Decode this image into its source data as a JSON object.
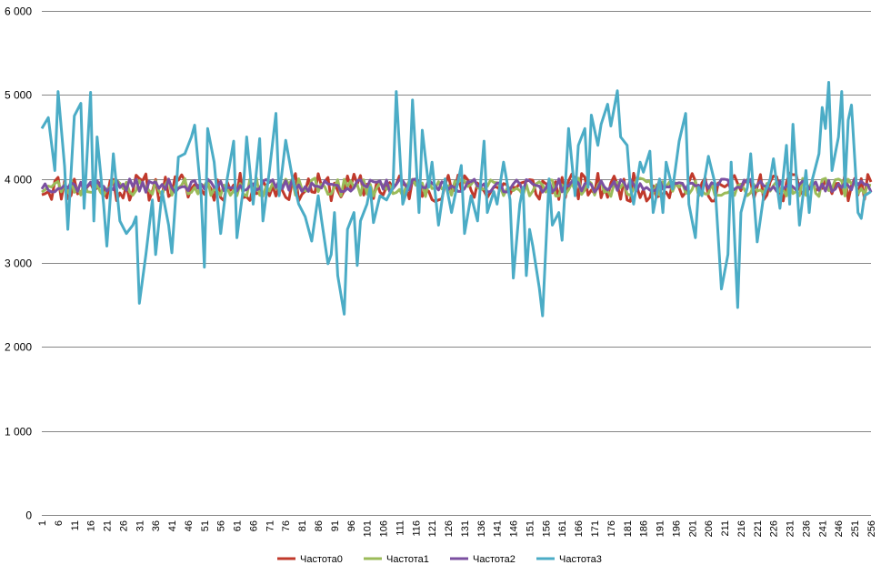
{
  "chart_data": {
    "type": "line",
    "title": "",
    "xlabel": "",
    "ylabel": "",
    "x_range": [
      1,
      256
    ],
    "ylim": [
      0,
      6000
    ],
    "yticks": [
      0,
      1000,
      2000,
      3000,
      4000,
      5000,
      6000
    ],
    "ytick_labels": [
      "0",
      "1 000",
      "2 000",
      "3 000",
      "4 000",
      "5 000",
      "6 000"
    ],
    "xtick_labels": [
      "1",
      "6",
      "11",
      "16",
      "21",
      "26",
      "31",
      "36",
      "41",
      "46",
      "51",
      "56",
      "61",
      "66",
      "71",
      "76",
      "81",
      "86",
      "91",
      "96",
      "101",
      "106",
      "111",
      "116",
      "121",
      "126",
      "131",
      "136",
      "141",
      "146",
      "151",
      "156",
      "161",
      "166",
      "171",
      "176",
      "181",
      "186",
      "191",
      "196",
      "201",
      "206",
      "211",
      "216",
      "221",
      "226",
      "231",
      "236",
      "241",
      "246",
      "251",
      "256"
    ],
    "grid": "horizontal",
    "legend_position": "bottom",
    "series": [
      {
        "name": "Частота0",
        "color": "#C0392B",
        "center": 3900,
        "amp": 170,
        "seed": 11
      },
      {
        "name": "Частота1",
        "color": "#9BBB59",
        "center": 3900,
        "amp": 110,
        "seed": 23
      },
      {
        "name": "Частота2",
        "color": "#7B4FA0",
        "center": 3920,
        "amp": 80,
        "seed": 37
      },
      {
        "name": "Частота3",
        "color": "#4BACC6",
        "anchors": [
          [
            1,
            4600
          ],
          [
            3,
            4730
          ],
          [
            5,
            4100
          ],
          [
            6,
            5040
          ],
          [
            8,
            4150
          ],
          [
            9,
            3400
          ],
          [
            11,
            4750
          ],
          [
            13,
            4900
          ],
          [
            14,
            3650
          ],
          [
            16,
            5030
          ],
          [
            17,
            3500
          ],
          [
            18,
            4500
          ],
          [
            20,
            3700
          ],
          [
            21,
            3200
          ],
          [
            23,
            4300
          ],
          [
            25,
            3500
          ],
          [
            27,
            3350
          ],
          [
            29,
            3450
          ],
          [
            30,
            3550
          ],
          [
            31,
            2520
          ],
          [
            33,
            3100
          ],
          [
            35,
            3750
          ],
          [
            36,
            3100
          ],
          [
            38,
            3850
          ],
          [
            40,
            3450
          ],
          [
            41,
            3120
          ],
          [
            43,
            4260
          ],
          [
            45,
            4300
          ],
          [
            47,
            4500
          ],
          [
            48,
            4640
          ],
          [
            50,
            3800
          ],
          [
            51,
            2950
          ],
          [
            52,
            4600
          ],
          [
            54,
            4200
          ],
          [
            56,
            3350
          ],
          [
            58,
            4000
          ],
          [
            60,
            4450
          ],
          [
            61,
            3300
          ],
          [
            63,
            3900
          ],
          [
            64,
            4500
          ],
          [
            66,
            3700
          ],
          [
            68,
            4480
          ],
          [
            69,
            3500
          ],
          [
            71,
            4100
          ],
          [
            73,
            4780
          ],
          [
            74,
            3800
          ],
          [
            76,
            4460
          ],
          [
            78,
            4030
          ],
          [
            80,
            3700
          ],
          [
            82,
            3550
          ],
          [
            84,
            3260
          ],
          [
            86,
            3800
          ],
          [
            87,
            3520
          ],
          [
            89,
            2990
          ],
          [
            90,
            3100
          ],
          [
            91,
            3600
          ],
          [
            92,
            2850
          ],
          [
            94,
            2390
          ],
          [
            95,
            3400
          ],
          [
            97,
            3600
          ],
          [
            98,
            2970
          ],
          [
            99,
            3500
          ],
          [
            101,
            3700
          ],
          [
            102,
            3900
          ],
          [
            103,
            3480
          ],
          [
            105,
            3800
          ],
          [
            107,
            3750
          ],
          [
            109,
            3900
          ],
          [
            110,
            5040
          ],
          [
            112,
            3700
          ],
          [
            114,
            3950
          ],
          [
            115,
            4940
          ],
          [
            117,
            3600
          ],
          [
            118,
            4580
          ],
          [
            120,
            3900
          ],
          [
            121,
            4200
          ],
          [
            123,
            3450
          ],
          [
            125,
            4000
          ],
          [
            127,
            3600
          ],
          [
            130,
            4160
          ],
          [
            131,
            3350
          ],
          [
            133,
            3800
          ],
          [
            135,
            3500
          ],
          [
            137,
            4450
          ],
          [
            138,
            3600
          ],
          [
            140,
            3850
          ],
          [
            141,
            3700
          ],
          [
            143,
            4200
          ],
          [
            145,
            3750
          ],
          [
            146,
            2820
          ],
          [
            148,
            3700
          ],
          [
            149,
            3900
          ],
          [
            150,
            2850
          ],
          [
            151,
            3400
          ],
          [
            152,
            3200
          ],
          [
            154,
            2700
          ],
          [
            155,
            2370
          ],
          [
            157,
            4000
          ],
          [
            158,
            3450
          ],
          [
            160,
            3600
          ],
          [
            161,
            3270
          ],
          [
            163,
            4600
          ],
          [
            165,
            3800
          ],
          [
            166,
            4400
          ],
          [
            168,
            4600
          ],
          [
            169,
            3900
          ],
          [
            170,
            4760
          ],
          [
            172,
            4400
          ],
          [
            173,
            4650
          ],
          [
            175,
            4890
          ],
          [
            176,
            4630
          ],
          [
            178,
            5050
          ],
          [
            179,
            4500
          ],
          [
            181,
            4400
          ],
          [
            182,
            3900
          ],
          [
            183,
            3700
          ],
          [
            185,
            4200
          ],
          [
            186,
            4080
          ],
          [
            188,
            4330
          ],
          [
            189,
            3600
          ],
          [
            191,
            4000
          ],
          [
            192,
            3600
          ],
          [
            193,
            4200
          ],
          [
            195,
            3880
          ],
          [
            197,
            4450
          ],
          [
            199,
            4780
          ],
          [
            200,
            3700
          ],
          [
            202,
            3300
          ],
          [
            203,
            3900
          ],
          [
            204,
            3800
          ],
          [
            206,
            4270
          ],
          [
            208,
            3950
          ],
          [
            210,
            2690
          ],
          [
            212,
            3100
          ],
          [
            213,
            4200
          ],
          [
            215,
            2470
          ],
          [
            216,
            3600
          ],
          [
            218,
            3900
          ],
          [
            219,
            4300
          ],
          [
            221,
            3250
          ],
          [
            223,
            3800
          ],
          [
            225,
            4000
          ],
          [
            226,
            4240
          ],
          [
            228,
            3650
          ],
          [
            230,
            4400
          ],
          [
            231,
            3700
          ],
          [
            232,
            4650
          ],
          [
            234,
            3450
          ],
          [
            236,
            4100
          ],
          [
            237,
            3600
          ],
          [
            238,
            4000
          ],
          [
            240,
            4300
          ],
          [
            241,
            4850
          ],
          [
            242,
            4600
          ],
          [
            243,
            5150
          ],
          [
            244,
            4100
          ],
          [
            246,
            4500
          ],
          [
            247,
            5040
          ],
          [
            248,
            3900
          ],
          [
            249,
            4700
          ],
          [
            250,
            4880
          ],
          [
            252,
            3600
          ],
          [
            253,
            3530
          ],
          [
            254,
            3800
          ],
          [
            256,
            3850
          ]
        ]
      }
    ]
  }
}
